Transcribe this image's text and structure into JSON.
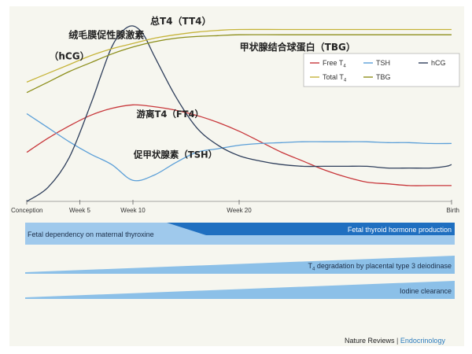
{
  "chart_data": {
    "type": "line",
    "x_categories": [
      "Conception",
      "Week 5",
      "Week 10",
      "Week 20",
      "Birth"
    ],
    "x_range_weeks": [
      0,
      40
    ],
    "y_range": [
      0,
      100
    ],
    "series": [
      {
        "name": "Free T4",
        "color": "#c8373b",
        "legend": "Free T",
        "sub": "4",
        "x": [
          0,
          2,
          4,
          6,
          8,
          10,
          12,
          14,
          16,
          18,
          20,
          22,
          24,
          26,
          28,
          30,
          32,
          34,
          36,
          38,
          40
        ],
        "y": [
          28,
          36,
          43,
          49,
          53,
          55,
          54,
          52,
          49,
          45,
          40,
          34,
          28,
          23,
          18,
          14,
          11,
          10,
          9,
          9,
          9
        ]
      },
      {
        "name": "TSH",
        "color": "#5b9fd8",
        "legend": "TSH",
        "sub": "",
        "x": [
          0,
          2,
          4,
          6,
          8,
          10,
          12,
          14,
          16,
          18,
          20,
          22,
          24,
          26,
          28,
          30,
          32,
          34,
          36,
          38,
          40
        ],
        "y": [
          50,
          42,
          34,
          27,
          21,
          12,
          15,
          22,
          28,
          30,
          32,
          33,
          33.5,
          34,
          34,
          34,
          34,
          33.5,
          33.5,
          33,
          33
        ]
      },
      {
        "name": "hCG",
        "color": "#2f3f5c",
        "legend": "hCG",
        "sub": "",
        "x": [
          0,
          2,
          4,
          6,
          7,
          8,
          9,
          10,
          11,
          12,
          14,
          16,
          18,
          20,
          22,
          24,
          26,
          28,
          30,
          32,
          34,
          36,
          38,
          39.5,
          40
        ],
        "y": [
          0,
          8,
          25,
          55,
          72,
          88,
          97,
          100,
          95,
          83,
          60,
          42,
          32,
          26,
          23,
          21,
          20,
          20,
          20,
          20,
          19,
          19,
          19,
          20,
          21
        ]
      },
      {
        "name": "Total T4",
        "color": "#c6b43a",
        "legend": "Total T",
        "sub": "4",
        "x": [
          0,
          2,
          4,
          6,
          8,
          10,
          12,
          14,
          16,
          18,
          20,
          24,
          28,
          32,
          36,
          40
        ],
        "y": [
          68,
          73,
          78,
          83,
          87,
          90,
          93,
          95,
          96.5,
          97.5,
          98,
          98,
          98,
          98,
          98,
          98
        ]
      },
      {
        "name": "TBG",
        "color": "#8d8f1c",
        "legend": "TBG",
        "sub": "",
        "x": [
          0,
          2,
          4,
          6,
          8,
          10,
          12,
          14,
          16,
          18,
          20,
          24,
          28,
          32,
          36,
          40
        ],
        "y": [
          62,
          68,
          74,
          79,
          84,
          88,
          91,
          93,
          94,
          94.5,
          95,
          95,
          95,
          95,
          95,
          95
        ]
      }
    ],
    "annotations": [
      {
        "key": "hcg_cn",
        "text": "绒毛膜促性腺激素",
        "at_week": 7.5,
        "at_y": 93
      },
      {
        "key": "hcg_en",
        "text": "（hCG）",
        "at_week": 4.0,
        "at_y": 81
      },
      {
        "key": "tt4",
        "text": "总T4（TT4）",
        "at_week": 14.5,
        "at_y": 101
      },
      {
        "key": "tbg",
        "text": "甲状腺结合球蛋白（TBG）",
        "at_week": 25.5,
        "at_y": 86
      },
      {
        "key": "ft4",
        "text": "游离T4（FT4）",
        "at_week": 13.5,
        "at_y": 48
      },
      {
        "key": "tsh",
        "text": "促甲状腺素（TSH）",
        "at_week": 14.0,
        "at_y": 25
      }
    ],
    "bands": [
      {
        "kind": "dependency",
        "left_text": "Fetal dependency on maternal thyroxine",
        "right_text": "Fetal thyroid hormone production"
      },
      {
        "kind": "wedge",
        "pre": "T",
        "sub": "4",
        "post": " degradation by placental type 3 deiodinase"
      },
      {
        "kind": "wedge",
        "pre": "Iodine clearance",
        "sub": "",
        "post": ""
      }
    ]
  },
  "credit": {
    "journal_part1": "Nature Reviews",
    "separator": "|",
    "journal_part2": "Endocrinology"
  }
}
